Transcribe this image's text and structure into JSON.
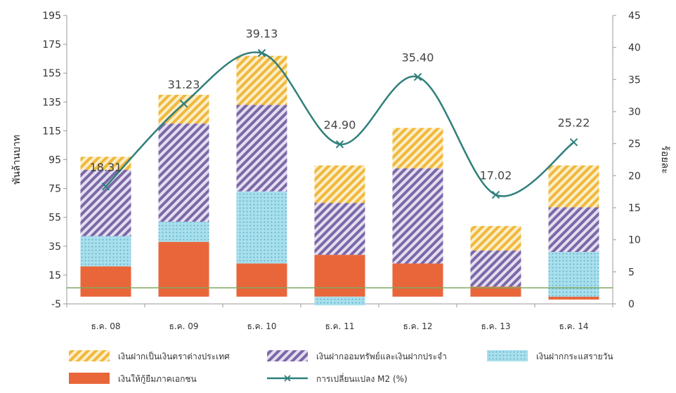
{
  "chart_data": {
    "type": "bar",
    "stacked": true,
    "categories": [
      "ธ.ค. 08",
      "ธ.ค. 09",
      "ธ.ค. 10",
      "ธ.ค. 11",
      "ธ.ค. 12",
      "ธ.ค. 13",
      "ธ.ค. 14"
    ],
    "ylabel_left": "พันล้านบาท",
    "ylabel_right": "ร้อยละ",
    "y_left_ticks": [
      "195",
      "175",
      "155",
      "135",
      "115",
      "95",
      "75",
      "55",
      "35",
      "15",
      "-5"
    ],
    "y_right_ticks": [
      "45",
      "40",
      "35",
      "30",
      "25",
      "20",
      "15",
      "10",
      "5",
      "0"
    ],
    "ylim_left": [
      -5,
      195
    ],
    "ylim_right": [
      0,
      45
    ],
    "series": [
      {
        "name": "เงินให้กู้ยืมภาคเอกชน",
        "color": "#e8663a",
        "pattern": "solid",
        "values": [
          21,
          38,
          23,
          29,
          23,
          7,
          -2
        ]
      },
      {
        "name": "เงินฝากกระแสรายวัน",
        "color": "#7fcde0",
        "pattern": "dots",
        "values": [
          21,
          14,
          50,
          -6,
          0,
          0,
          31
        ]
      },
      {
        "name": "เงินฝากออมทรัพย์และเงินฝากประจำ",
        "color": "#7b68a8",
        "pattern": "hatch",
        "values": [
          46,
          68,
          60,
          36,
          66,
          25,
          31
        ]
      },
      {
        "name": "เงินฝากเป็นเงินตราต่างประเทศ",
        "color": "#f0b83c",
        "pattern": "hatch",
        "values": [
          9,
          20,
          34,
          26,
          28,
          17,
          29
        ]
      }
    ],
    "line": {
      "name": "การเปลี่ยนแปลง M2 (%)",
      "color": "#2f7f7a",
      "axis": "right",
      "values": [
        18.31,
        31.23,
        39.13,
        24.9,
        35.4,
        17.02,
        25.22
      ],
      "labels": [
        "18.31",
        "31.23",
        "39.13",
        "24.90",
        "35.40",
        "17.02",
        "25.22"
      ]
    },
    "reference_line": {
      "value": 2.5,
      "axis": "right",
      "color": "#7fa860"
    },
    "legend_order": [
      2,
      3,
      1,
      0,
      "line"
    ],
    "legend_placement": "bottom",
    "grid": false
  }
}
